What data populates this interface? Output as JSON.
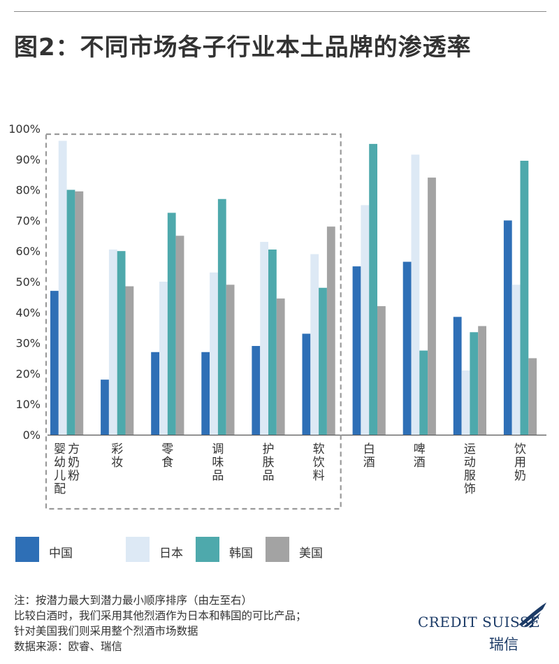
{
  "title": "图2：不同市场各子行业本土品牌的渗透率",
  "chart_data": {
    "type": "bar",
    "y_tick_labels": [
      "0%",
      "10%",
      "20%",
      "30%",
      "40%",
      "50%",
      "60%",
      "70%",
      "80%",
      "90%",
      "100%"
    ],
    "ylim": [
      0,
      100
    ],
    "categories": [
      {
        "lines": [
          "婴幼儿配",
          "方奶粉"
        ]
      },
      {
        "lines": [
          "彩妆"
        ]
      },
      {
        "lines": [
          "零食"
        ]
      },
      {
        "lines": [
          "调味品"
        ]
      },
      {
        "lines": [
          "护肤品"
        ]
      },
      {
        "lines": [
          "软饮料"
        ]
      },
      {
        "lines": [
          "白酒"
        ]
      },
      {
        "lines": [
          "啤酒"
        ]
      },
      {
        "lines": [
          "运动服饰"
        ]
      },
      {
        "lines": [
          "饮用奶"
        ]
      }
    ],
    "series": [
      {
        "name": "中国",
        "color": "#2e6fb6",
        "values": [
          47,
          18,
          27,
          27,
          29,
          33,
          55,
          56.5,
          38.5,
          70
        ]
      },
      {
        "name": "日本",
        "color": "#dde9f5",
        "values": [
          96,
          60.5,
          50,
          53,
          63,
          59,
          75,
          91.5,
          21,
          49
        ]
      },
      {
        "name": "韩国",
        "color": "#4ea9ac",
        "values": [
          80,
          60,
          72.5,
          77,
          60.5,
          48,
          95,
          27.5,
          33.5,
          89.5
        ]
      },
      {
        "name": "美国",
        "color": "#a3a3a3",
        "values": [
          79.5,
          48.5,
          65,
          49,
          44.5,
          68,
          42,
          84,
          35.5,
          25
        ]
      }
    ],
    "highlight_group": {
      "first_index": 0,
      "last_index": 5
    },
    "grid": false
  },
  "notes": [
    "注：按潜力最大到潜力最小顺序排序（由左至右）",
    "比较白酒时，我们采用其他烈酒作为日本和韩国的可比产品；",
    "针对美国我们则采用整个烈酒市场数据",
    "数据来源：欧睿、瑞信"
  ],
  "logo": {
    "text": "CREDIT SUISSE",
    "sub": "瑞信"
  }
}
